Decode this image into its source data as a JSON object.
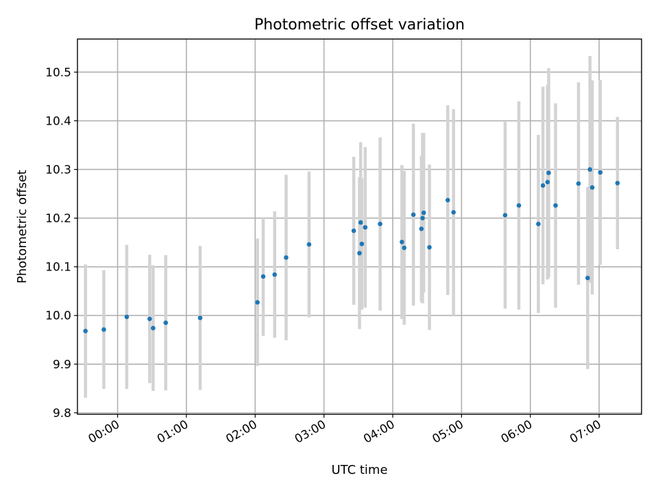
{
  "chart_data": {
    "type": "scatter",
    "title": "Photometric offset variation",
    "xlabel": "UTC time",
    "ylabel": "Photometric offset",
    "xlim": [
      "-0:35",
      "7:37"
    ],
    "ylim": [
      9.797,
      10.568
    ],
    "x_ticks": [
      "00:00",
      "01:00",
      "02:00",
      "03:00",
      "04:00",
      "05:00",
      "06:00",
      "07:00"
    ],
    "y_ticks": [
      9.8,
      9.9,
      10.0,
      10.1,
      10.2,
      10.3,
      10.4,
      10.5
    ],
    "grid": true,
    "colors": {
      "point": "#1f77b4",
      "errorbar": "#d3d3d3"
    },
    "points": [
      {
        "x": "-0:28",
        "y": 9.968,
        "err": 0.137
      },
      {
        "x": "-0:12",
        "y": 9.971,
        "err": 0.122
      },
      {
        "x": "0:08",
        "y": 9.997,
        "err": 0.148
      },
      {
        "x": "0:28",
        "y": 9.993,
        "err": 0.132
      },
      {
        "x": "0:31",
        "y": 9.974,
        "err": 0.129
      },
      {
        "x": "0:42",
        "y": 9.985,
        "err": 0.139
      },
      {
        "x": "1:12",
        "y": 9.995,
        "err": 0.148
      },
      {
        "x": "2:02",
        "y": 10.027,
        "err": 0.131
      },
      {
        "x": "2:07",
        "y": 10.08,
        "err": 0.122
      },
      {
        "x": "2:17",
        "y": 10.084,
        "err": 0.13
      },
      {
        "x": "2:27",
        "y": 10.119,
        "err": 0.17
      },
      {
        "x": "2:47",
        "y": 10.146,
        "err": 0.15
      },
      {
        "x": "3:26",
        "y": 10.174,
        "err": 0.152
      },
      {
        "x": "3:31",
        "y": 10.128,
        "err": 0.156
      },
      {
        "x": "3:32",
        "y": 10.191,
        "err": 0.165
      },
      {
        "x": "3:33",
        "y": 10.147,
        "err": 0.135
      },
      {
        "x": "3:36",
        "y": 10.181,
        "err": 0.165
      },
      {
        "x": "3:49",
        "y": 10.188,
        "err": 0.178
      },
      {
        "x": "4:08",
        "y": 10.151,
        "err": 0.158
      },
      {
        "x": "4:10",
        "y": 10.139,
        "err": 0.158
      },
      {
        "x": "4:18",
        "y": 10.207,
        "err": 0.187
      },
      {
        "x": "4:25",
        "y": 10.178,
        "err": 0.15
      },
      {
        "x": "4:26",
        "y": 10.2,
        "err": 0.175
      },
      {
        "x": "4:27",
        "y": 10.211,
        "err": 0.164
      },
      {
        "x": "4:32",
        "y": 10.14,
        "err": 0.17
      },
      {
        "x": "4:48",
        "y": 10.237,
        "err": 0.195
      },
      {
        "x": "4:53",
        "y": 10.212,
        "err": 0.212
      },
      {
        "x": "5:38",
        "y": 10.206,
        "err": 0.192
      },
      {
        "x": "5:50",
        "y": 10.226,
        "err": 0.214
      },
      {
        "x": "6:07",
        "y": 10.188,
        "err": 0.183
      },
      {
        "x": "6:11",
        "y": 10.267,
        "err": 0.203
      },
      {
        "x": "6:15",
        "y": 10.274,
        "err": 0.2
      },
      {
        "x": "6:16",
        "y": 10.293,
        "err": 0.215
      },
      {
        "x": "6:22",
        "y": 10.226,
        "err": 0.21
      },
      {
        "x": "6:42",
        "y": 10.271,
        "err": 0.208
      },
      {
        "x": "6:50",
        "y": 10.077,
        "err": 0.187
      },
      {
        "x": "6:52",
        "y": 10.3,
        "err": 0.233
      },
      {
        "x": "6:54",
        "y": 10.263,
        "err": 0.22
      },
      {
        "x": "7:01",
        "y": 10.294,
        "err": 0.19
      },
      {
        "x": "7:16",
        "y": 10.272,
        "err": 0.136
      }
    ]
  }
}
